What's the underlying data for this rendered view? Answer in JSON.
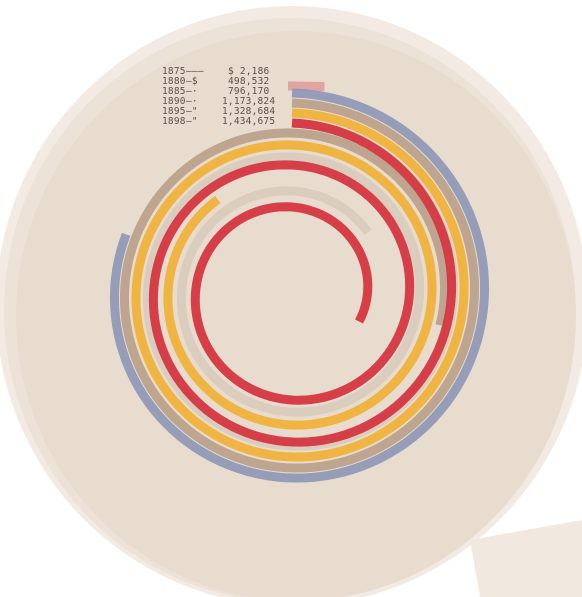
{
  "chart_data": {
    "type": "spiral-bar",
    "title": "",
    "xlabel": "",
    "ylabel": "",
    "categories": [
      "1875",
      "1880",
      "1885",
      "1890",
      "1895",
      "1898"
    ],
    "series": [
      {
        "values": [
          2186,
          498532,
          796170,
          1173824,
          1328684,
          1434675
        ],
        "colors": [
          "#e2a4a0",
          "#8d97b6",
          "#b8a08a",
          "#f0b036",
          "#d9cbbc",
          "#d5313d"
        ]
      }
    ],
    "legend": [
      {
        "year": "1875",
        "leader": "———",
        "amount": "$ 2,186"
      },
      {
        "year": "1880",
        "leader": "—$",
        "amount": "498,532"
      },
      {
        "year": "1885",
        "leader": "—·",
        "amount": "796,170"
      },
      {
        "year": "1890",
        "leader": "—·",
        "amount": "1,173,824"
      },
      {
        "year": "1895",
        "leader": "—\"",
        "amount": "1,328,684"
      },
      {
        "year": "1898",
        "leader": "—\"",
        "amount": "1,434,675"
      }
    ],
    "legend_placement": "top-center",
    "grid": false
  },
  "colors": {
    "paper": "#eadfd3",
    "paper_shade": "#e3d6c8",
    "background": "#ffffff"
  }
}
